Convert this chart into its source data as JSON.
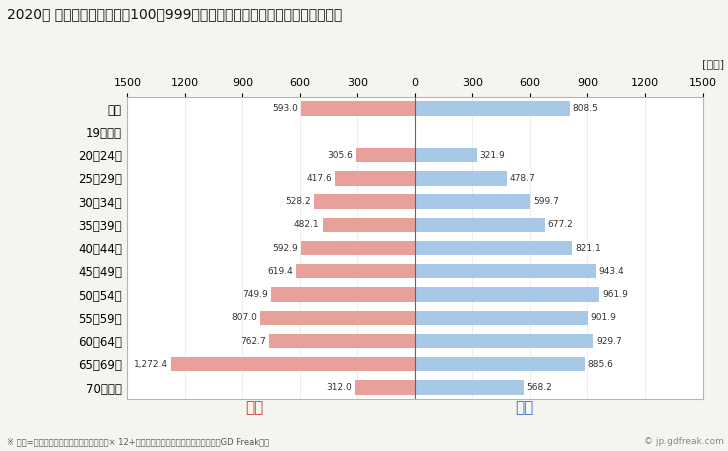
{
  "title": "2020年 民間企業（従業者数100～999人）フルタイム労働者の男女別平均年収",
  "unit_label": "[万円]",
  "categories": [
    "全体",
    "19歳以下",
    "20～24歳",
    "25～29歳",
    "30～34歳",
    "35～39歳",
    "40～44歳",
    "45～49歳",
    "50～54歳",
    "55～59歳",
    "60～64歳",
    "65～69歳",
    "70歳以上"
  ],
  "female_values": [
    593.0,
    0,
    305.6,
    417.6,
    528.2,
    482.1,
    592.9,
    619.4,
    749.9,
    807.0,
    762.7,
    1272.4,
    312.0
  ],
  "male_values": [
    808.5,
    0,
    321.9,
    478.7,
    599.7,
    677.2,
    821.1,
    943.4,
    961.9,
    901.9,
    929.7,
    885.6,
    568.2
  ],
  "female_color": "#e8a09a",
  "male_color": "#a8c8e8",
  "female_label": "女性",
  "male_label": "男性",
  "female_label_color": "#cc3333",
  "male_label_color": "#3366cc",
  "xlim": 1500,
  "footnote": "※ 年収=「きまって支給する現金給与額」× 12+「年間賞与その他特別給与額」としてGD Freak推計",
  "watermark": "© jp.gdfreak.com",
  "background_color": "#f5f5f0",
  "plot_bg_color": "#ffffff",
  "border_color": "#c8b878"
}
